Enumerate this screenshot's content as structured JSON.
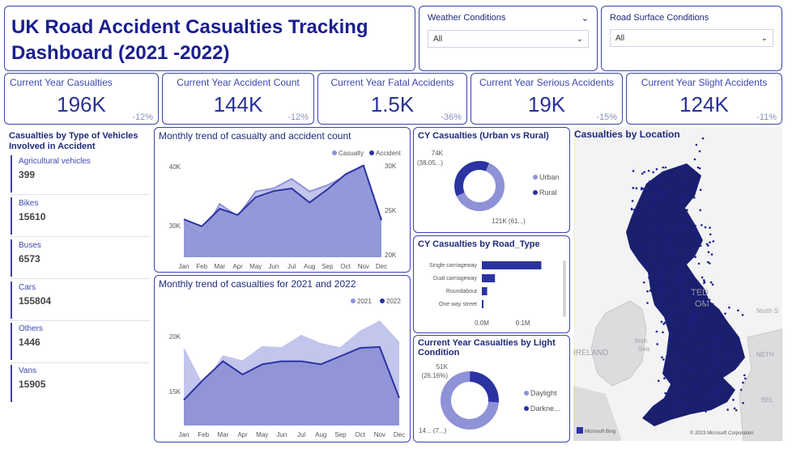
{
  "header": {
    "title_line1": "UK Road Accident Casualties Tracking",
    "title_line2": "Dashboard (2021 -2022)"
  },
  "slicers": [
    {
      "label": "Weather Conditions",
      "value": "All"
    },
    {
      "label": "Road Surface Conditions",
      "value": "All"
    }
  ],
  "kpis": [
    {
      "label": "Current Year Casualties",
      "value": "196K",
      "delta": "-12%"
    },
    {
      "label": "Current Year Accident Count",
      "value": "144K",
      "delta": "-12%"
    },
    {
      "label": "Current Year Fatal Accidents",
      "value": "1.5K",
      "delta": "-36%"
    },
    {
      "label": "Current Year Serious Accidents",
      "value": "19K",
      "delta": "-15%"
    },
    {
      "label": "Current Year Slight Accidents",
      "value": "124K",
      "delta": "-11%"
    }
  ],
  "vehicles": {
    "title_line1": "Casualties by Type of Vehicles",
    "title_line2": "Involved in Accident",
    "items": [
      {
        "label": "Agricultural vehicles",
        "value": "399"
      },
      {
        "label": "Bikes",
        "value": "15610"
      },
      {
        "label": "Buses",
        "value": "6573"
      },
      {
        "label": "Cars",
        "value": "155804"
      },
      {
        "label": "Others",
        "value": "1446"
      },
      {
        "label": "Vans",
        "value": "15905"
      }
    ]
  },
  "colors": {
    "primary": "#2b33a3",
    "light": "#8e92d6",
    "lighter": "#c2c5ec",
    "bg": "#ffffff"
  },
  "chart_data": [
    {
      "type": "area",
      "title": "Monthly trend of casualty and accident count",
      "categories": [
        "Jan",
        "Feb",
        "Mar",
        "Apr",
        "May",
        "Jun",
        "Jul",
        "Aug",
        "Sep",
        "Oct",
        "Nov",
        "Dec"
      ],
      "series": [
        {
          "name": "Casualty",
          "axis": "left",
          "values": [
            31.5,
            29.5,
            34.5,
            32.5,
            36.5,
            37,
            38.5,
            36.5,
            37.5,
            39,
            40.5,
            32
          ]
        },
        {
          "name": "Accident",
          "axis": "right",
          "values": [
            23.3,
            22.5,
            24.5,
            23.8,
            25.8,
            26.5,
            26.8,
            25.2,
            26.7,
            28.4,
            29.4,
            23.2
          ]
        }
      ],
      "y_left_ticks": [
        "30K",
        "40K"
      ],
      "y_right_ticks": [
        "20K",
        "25K",
        "30K"
      ],
      "legend": "top-right"
    },
    {
      "type": "area",
      "title": "Monthly trend of casualties for 2021 and 2022",
      "categories": [
        "Jan",
        "Feb",
        "Mar",
        "Apr",
        "May",
        "Jun",
        "Jul",
        "Aug",
        "Sep",
        "Oct",
        "Nov",
        "Dec"
      ],
      "series": [
        {
          "name": "2021",
          "values": [
            18.5,
            14.8,
            17.8,
            17.3,
            18.7,
            18.6,
            19.8,
            19.0,
            18.6,
            20.2,
            21.2,
            19.1
          ]
        },
        {
          "name": "2022",
          "values": [
            13.5,
            15.5,
            17.3,
            16.0,
            17.0,
            17.3,
            17.3,
            17.0,
            17.8,
            18.6,
            18.7,
            13.7
          ]
        }
      ],
      "y_ticks": [
        "15K",
        "20K"
      ],
      "legend": "top-right"
    },
    {
      "type": "pie",
      "title": "CY Casualties (Urban vs Rural)",
      "slices": [
        {
          "name": "Urban",
          "value": 121,
          "label": "121K (61...)"
        },
        {
          "name": "Rural",
          "value": 74,
          "label": "74K",
          "sublabel": "(38.05...)"
        }
      ]
    },
    {
      "type": "bar",
      "title": "CY Casualties by Road_Type",
      "categories": [
        "Single carriageway",
        "Dual carriageway",
        "Roundabout",
        "One way street"
      ],
      "values": [
        0.145,
        0.032,
        0.013,
        0.004
      ],
      "x_ticks": [
        "0.0M",
        "0.1M"
      ]
    },
    {
      "type": "pie",
      "title_line1": "Current Year Casualties by Light",
      "title_line2": "Condition",
      "slices": [
        {
          "name": "Daylight",
          "value": 145,
          "label": "14... (7...)"
        },
        {
          "name": "Darkne...",
          "value": 51,
          "label": "51K",
          "sublabel": "(26.16%)"
        }
      ]
    }
  ],
  "map": {
    "title": "Casualties by Location",
    "labels": {
      "ireland": "IRELAND",
      "uk1": "TED",
      "uk2": "OM",
      "irish_sea1": "Irish",
      "irish_sea2": "Sea",
      "north_sea": "North S",
      "neth": "NETH",
      "bel": "BEL"
    },
    "attribution_left": "Microsoft Bing",
    "attribution_right": "© 2023 Microsoft Corporation"
  }
}
